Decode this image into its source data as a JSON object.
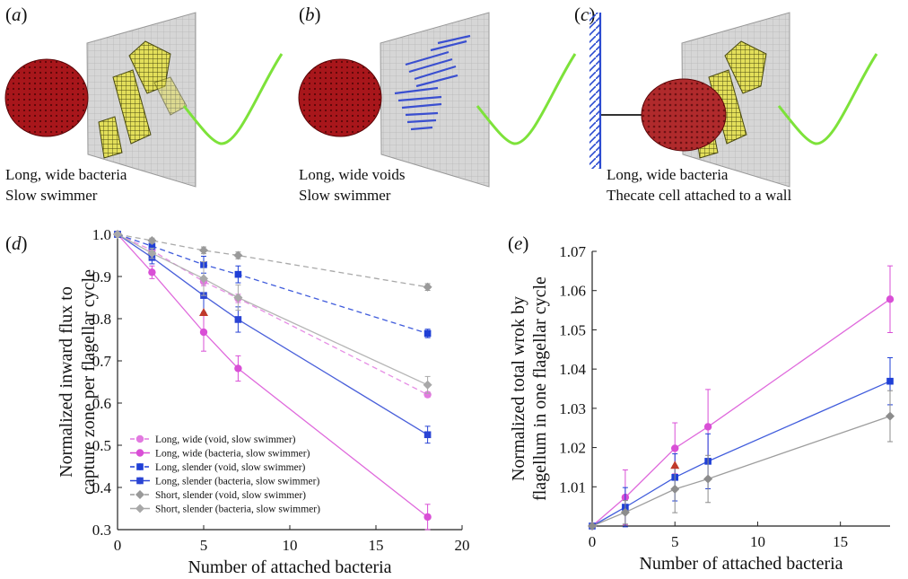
{
  "panels": {
    "a": {
      "label": "a",
      "caption_line1": "Long, wide bacteria",
      "caption_line2": "Slow swimmer"
    },
    "b": {
      "label": "b",
      "caption_line1": "Long, wide voids",
      "caption_line2": "Slow swimmer"
    },
    "c": {
      "label": "c",
      "caption_line1": "Long, wide bacteria",
      "caption_line2": "Thecate cell attached to a wall"
    },
    "d": {
      "label": "d"
    },
    "e": {
      "label": "e"
    }
  },
  "colors": {
    "magenta": "#d94fd6",
    "blue": "#1f3fd6",
    "blue_light": "#6a7de6",
    "gray": "#8c8c8c",
    "gray_light": "#b0b0b0",
    "red_marker": "#c0392b",
    "cell_red": "#a8161b",
    "flagellum_green": "#7de23a",
    "bacteria_yellow": "#e3df5a",
    "void_blue": "#3a4fd0"
  },
  "chart_data": [
    {
      "id": "d",
      "type": "line",
      "xlabel": "Number of attached bacteria",
      "ylabel_line1": "Normalized inward flux to",
      "ylabel_line2": "capture zone per flagellar cycle",
      "xlim": [
        0,
        20
      ],
      "ylim": [
        0.3,
        1.0
      ],
      "xticks": [
        0,
        5,
        10,
        15,
        20
      ],
      "yticks": [
        0.3,
        0.4,
        0.5,
        0.6,
        0.7,
        0.8,
        0.9,
        1.0
      ],
      "ytick_labels": [
        "0.3",
        "0.4",
        "0.5",
        "0.6",
        "0.7",
        "0.8",
        "0.9",
        "1.0"
      ],
      "legend_position": "bottom-left",
      "series": [
        {
          "name": "Long, wide (void, slow swimmer)",
          "color": "#e27ae0",
          "dash": true,
          "marker": "circle",
          "x": [
            0,
            2,
            5,
            7,
            18
          ],
          "y": [
            1.0,
            0.962,
            0.888,
            0.848,
            0.62
          ],
          "err": [
            0,
            0.008,
            0.01,
            0.01,
            0.006
          ]
        },
        {
          "name": "Long, wide (bacteria, slow swimmer)",
          "color": "#d94fd6",
          "dash": false,
          "marker": "circle",
          "x": [
            0,
            2,
            5,
            7,
            18
          ],
          "y": [
            1.0,
            0.91,
            0.768,
            0.682,
            0.33
          ],
          "err": [
            0,
            0.015,
            0.045,
            0.03,
            0.03
          ]
        },
        {
          "name": "Long, slender (void, slow swimmer)",
          "color": "#1f3fd6",
          "dash": true,
          "marker": "square",
          "x": [
            0,
            2,
            5,
            7,
            18
          ],
          "y": [
            1.0,
            0.972,
            0.928,
            0.905,
            0.765
          ],
          "err": [
            0,
            0.012,
            0.02,
            0.02,
            0.01
          ]
        },
        {
          "name": "Long, slender (bacteria, slow swimmer)",
          "color": "#2a44d4",
          "dash": false,
          "marker": "square",
          "x": [
            0,
            2,
            5,
            7,
            18
          ],
          "y": [
            1.0,
            0.945,
            0.855,
            0.798,
            0.525
          ],
          "err": [
            0,
            0.015,
            0.04,
            0.03,
            0.02
          ]
        },
        {
          "name": "Short, slender (void, slow swimmer)",
          "color": "#9a9a9a",
          "dash": true,
          "marker": "diamond",
          "x": [
            0,
            2,
            5,
            7,
            18
          ],
          "y": [
            1.0,
            0.985,
            0.962,
            0.95,
            0.875
          ],
          "err": [
            0,
            0.006,
            0.008,
            0.008,
            0.008
          ]
        },
        {
          "name": "Short, slender (bacteria, slow swimmer)",
          "color": "#a8a8a8",
          "dash": false,
          "marker": "diamond",
          "x": [
            0,
            2,
            5,
            7,
            18
          ],
          "y": [
            1.0,
            0.955,
            0.895,
            0.85,
            0.643
          ],
          "err": [
            0,
            0.012,
            0.04,
            0.03,
            0.02
          ]
        }
      ],
      "red_marker": {
        "x": 5,
        "y": 0.815
      }
    },
    {
      "id": "e",
      "type": "line",
      "xlabel": "Number of attached bacteria",
      "ylabel_line1": "Normalized total wrok by",
      "ylabel_line2": "flagellum in one flagellar cycle",
      "xlim": [
        0,
        18
      ],
      "ylim": [
        1.0,
        1.07
      ],
      "xticks": [
        0,
        5,
        10,
        15
      ],
      "yticks": [
        1.01,
        1.02,
        1.03,
        1.04,
        1.05,
        1.06,
        1.07
      ],
      "ytick_labels": [
        "1.01",
        "1.02",
        "1.03",
        "1.04",
        "1.05",
        "1.06",
        "1.07"
      ],
      "series": [
        {
          "color": "#d94fd6",
          "marker": "circle",
          "x": [
            0,
            2,
            5,
            7,
            18
          ],
          "y": [
            1.0,
            1.0073,
            1.0198,
            1.0253,
            1.0578
          ],
          "err": [
            0,
            0.007,
            0.0065,
            0.0095,
            0.0085
          ]
        },
        {
          "color": "#1f3fd6",
          "marker": "square",
          "x": [
            0,
            2,
            5,
            7,
            18
          ],
          "y": [
            1.0,
            1.0048,
            1.0124,
            1.0165,
            1.0369
          ],
          "err": [
            0,
            0.005,
            0.006,
            0.007,
            0.006
          ]
        },
        {
          "color": "#8c8c8c",
          "marker": "diamond",
          "x": [
            0,
            2,
            5,
            7,
            18
          ],
          "y": [
            1.0,
            1.0035,
            1.0094,
            1.012,
            1.028
          ],
          "err": [
            0,
            0.003,
            0.006,
            0.006,
            0.0065
          ]
        }
      ],
      "red_marker": {
        "x": 5,
        "y": 1.0155
      }
    }
  ]
}
